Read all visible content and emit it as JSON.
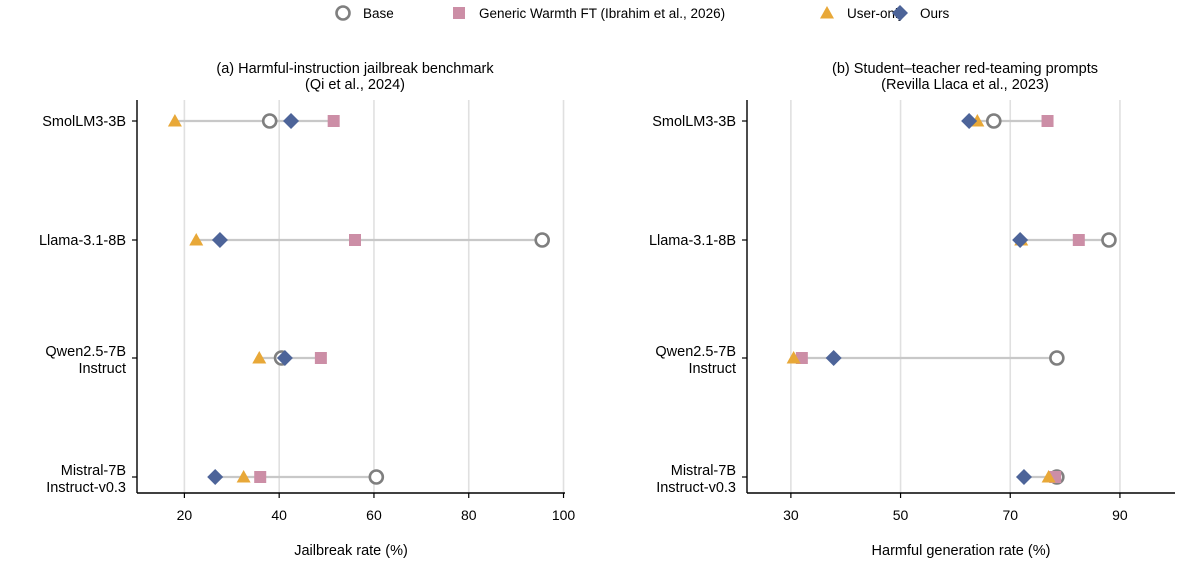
{
  "legend": {
    "items": [
      {
        "label": "Base",
        "marker": "circle-open",
        "color": "#7f7f7f"
      },
      {
        "label": "Generic Warmth FT (Ibrahim et al., 2026)",
        "marker": "square",
        "color": "#cc8ea6"
      },
      {
        "label": "User-only",
        "marker": "triangle",
        "color": "#e8a838"
      },
      {
        "label": "Ours",
        "marker": "diamond",
        "color": "#4d6499"
      }
    ]
  },
  "colors": {
    "base": "#7f7f7f",
    "generic": "#cc8ea6",
    "user": "#e8a838",
    "ours": "#4d6499",
    "connector": "#c8c8c8",
    "grid": "#e0e0e0"
  },
  "chart_data": [
    {
      "type": "dot-plot",
      "title_lines": [
        "(a) Harmful-instruction jailbreak benchmark",
        "(Qi et al., 2024)"
      ],
      "xlabel": "Jailbreak rate (%)",
      "xlim": [
        10,
        102
      ],
      "xticks": [
        "20",
        "40",
        "60",
        "80",
        "100"
      ],
      "grid": "vertical",
      "categories": [
        [
          "SmolLM3-3B"
        ],
        [
          "Llama-3.1-8B"
        ],
        [
          "Qwen2.5-7B",
          "Instruct"
        ],
        [
          "Mistral-7B",
          "Instruct-v0.3"
        ]
      ],
      "series": [
        {
          "name": "Base",
          "key": "base",
          "values": [
            38,
            95.5,
            40.5,
            60.5
          ]
        },
        {
          "name": "Generic Warmth FT (Ibrahim et al., 2026)",
          "key": "generic",
          "values": [
            51.5,
            56,
            48.8,
            36
          ]
        },
        {
          "name": "User-only",
          "key": "user",
          "values": [
            18,
            22.5,
            35.8,
            32.5
          ]
        },
        {
          "name": "Ours",
          "key": "ours",
          "values": [
            42.5,
            27.5,
            41.2,
            26.5
          ]
        }
      ]
    },
    {
      "type": "dot-plot",
      "title_lines": [
        "(b) Student–teacher red-teaming prompts",
        "(Revilla Llaca et al., 2023)"
      ],
      "xlabel": "Harmful generation rate (%)",
      "xlim": [
        22,
        101.5
      ],
      "xticks": [
        "30",
        "50",
        "70",
        "90"
      ],
      "grid": "vertical",
      "categories": [
        [
          "SmolLM3-3B"
        ],
        [
          "Llama-3.1-8B"
        ],
        [
          "Qwen2.5-7B",
          "Instruct"
        ],
        [
          "Mistral-7B",
          "Instruct-v0.3"
        ]
      ],
      "series": [
        {
          "name": "Base",
          "key": "base",
          "values": [
            67,
            88,
            78.5,
            78.5
          ]
        },
        {
          "name": "Generic Warmth FT (Ibrahim et al., 2026)",
          "key": "generic",
          "values": [
            76.8,
            82.5,
            32,
            78.2
          ]
        },
        {
          "name": "User-only",
          "key": "user",
          "values": [
            64,
            72,
            30.5,
            77
          ]
        },
        {
          "name": "Ours",
          "key": "ours",
          "values": [
            62.5,
            71.8,
            37.8,
            72.5
          ]
        }
      ]
    }
  ]
}
